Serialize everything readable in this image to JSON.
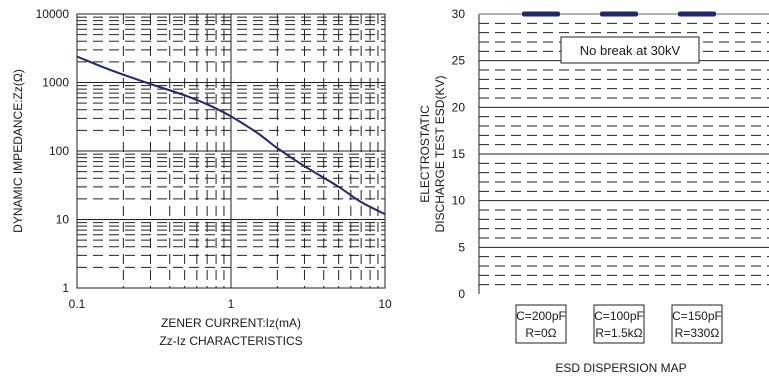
{
  "chart_data": [
    {
      "type": "line",
      "xscale": "log",
      "yscale": "log",
      "xlim": [
        0.1,
        10
      ],
      "ylim": [
        1,
        10000
      ],
      "x_ticks": [
        "0.1",
        "1",
        "10"
      ],
      "y_ticks": [
        "1",
        "10",
        "100",
        "1000",
        "10000"
      ],
      "xlabel": "ZENER CURRENT:Iz(mA)",
      "ylabel": "DYNAMIC IMPEDANCE:Zz(Ω)",
      "title": "Zz-Iz CHARACTERISTICS",
      "grid": true,
      "colors": {
        "curve": "#1f2a6e",
        "grid": "#222222"
      },
      "series": [
        {
          "x": [
            0.1,
            0.15,
            0.2,
            0.3,
            0.5,
            0.7,
            1,
            1.5,
            2,
            3,
            5,
            7,
            10
          ],
          "values": [
            2400,
            1650,
            1300,
            950,
            650,
            480,
            320,
            180,
            110,
            60,
            30,
            18,
            12
          ]
        }
      ]
    },
    {
      "type": "scatter",
      "ylim": [
        0,
        30
      ],
      "y_ticks": [
        "0",
        "5",
        "10",
        "15",
        "20",
        "25",
        "30"
      ],
      "ylabel": "ELECTROSTATIC DISCHARGE TEST ESD(KV)",
      "xlabel": "ESD DISPERSION MAP",
      "annotation": "No break at 30kV",
      "grid": true,
      "colors": {
        "marker": "#1f2a6e",
        "grid": "#222222"
      },
      "categories": [
        {
          "line1": "C=200pF",
          "line2": "R=0Ω"
        },
        {
          "line1": "C=100pF",
          "line2": "R=1.5kΩ"
        },
        {
          "line1": "C=150pF",
          "line2": "R=330Ω"
        }
      ],
      "values": [
        30,
        30,
        30
      ]
    }
  ]
}
